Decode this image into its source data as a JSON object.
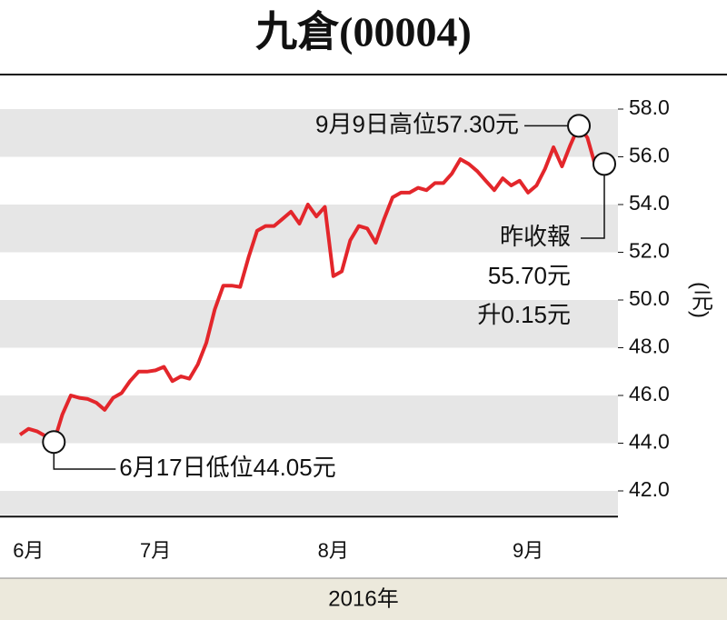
{
  "chart_data": {
    "type": "line",
    "title": "九倉(00004)",
    "xlabel": "2016年",
    "unit": "(元)",
    "categories": [
      null,
      "6月",
      null,
      null,
      null,
      null,
      null,
      null,
      null,
      null,
      null,
      null,
      null,
      null,
      null,
      null,
      "7月",
      null,
      null,
      null,
      null,
      null,
      null,
      null,
      null,
      null,
      null,
      null,
      null,
      null,
      null,
      null,
      null,
      null,
      null,
      null,
      null,
      "8月",
      null,
      null,
      null,
      null,
      null,
      null,
      null,
      null,
      null,
      null,
      null,
      null,
      null,
      null,
      null,
      null,
      null,
      null,
      null,
      null,
      null,
      null,
      "9月",
      null,
      null,
      null,
      null,
      null,
      null,
      null,
      null,
      null
    ],
    "values": [
      44.35,
      44.6,
      44.5,
      44.3,
      44.05,
      45.2,
      46.0,
      45.9,
      45.85,
      45.7,
      45.4,
      45.9,
      46.1,
      46.6,
      47.0,
      47.0,
      47.05,
      47.2,
      46.6,
      46.8,
      46.7,
      47.3,
      48.2,
      49.6,
      50.6,
      50.6,
      50.55,
      51.8,
      52.9,
      53.1,
      53.1,
      53.4,
      53.7,
      53.2,
      54.0,
      53.5,
      53.9,
      51.0,
      51.2,
      52.5,
      53.1,
      53.0,
      52.4,
      53.4,
      54.3,
      54.5,
      54.5,
      54.7,
      54.6,
      54.9,
      54.9,
      55.3,
      55.9,
      55.7,
      55.4,
      55.0,
      54.6,
      55.1,
      54.8,
      55.0,
      54.5,
      54.8,
      55.5,
      56.4,
      55.6,
      56.5,
      57.3,
      56.8,
      55.55,
      55.7
    ],
    "color": "#e3262b",
    "ylim": [
      41,
      59
    ],
    "yticks": [
      {
        "value": 42,
        "label": "42.0"
      },
      {
        "value": 44,
        "label": "44.0"
      },
      {
        "value": 46,
        "label": "46.0"
      },
      {
        "value": 48,
        "label": "48.0"
      },
      {
        "value": 50,
        "label": "50.0"
      },
      {
        "value": 52,
        "label": "52.0"
      },
      {
        "value": 54,
        "label": "54.0"
      },
      {
        "value": 56,
        "label": "56.0"
      },
      {
        "value": 58,
        "label": "58.0"
      }
    ],
    "grid": true,
    "annotations": [
      {
        "text": [
          "9月9日高位57.30元"
        ]
      },
      {
        "text": [
          "昨收報",
          "55.70元",
          "升0.15元"
        ]
      },
      {
        "text": [
          "6月17日低位44.05元"
        ]
      }
    ]
  }
}
